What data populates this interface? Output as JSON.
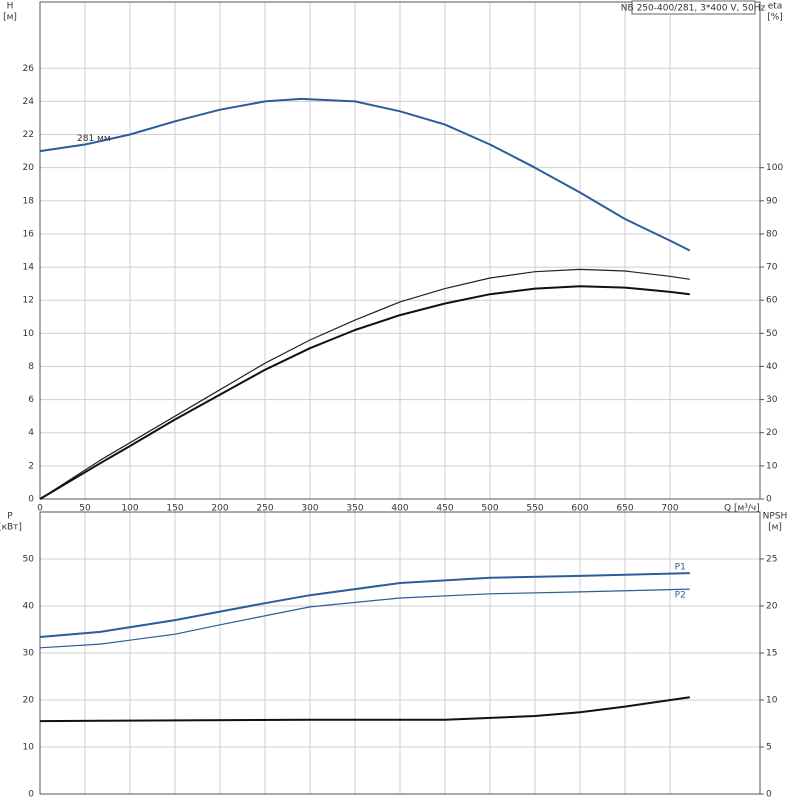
{
  "chart_data": [
    {
      "type": "line",
      "title": "NB 250-400/281, 3*400 V, 50Hz",
      "ylabel": [
        "H",
        "[м]"
      ],
      "y2label": [
        "eta",
        "[%]"
      ],
      "xlabel": "Q [м³/ч]",
      "annotation": "281 мм",
      "xlim": [
        0,
        800
      ],
      "xticks": [
        0,
        50,
        100,
        150,
        200,
        250,
        300,
        350,
        400,
        450,
        500,
        550,
        600,
        650,
        700
      ],
      "xticklabels": true,
      "ylim": [
        0,
        30
      ],
      "yticks": [
        0,
        2,
        4,
        6,
        8,
        10,
        12,
        14,
        16,
        18,
        20,
        22,
        24,
        26
      ],
      "y2lim": [
        0,
        150
      ],
      "y2ticks": [
        0,
        10,
        20,
        30,
        40,
        50,
        60,
        70,
        80,
        90,
        100
      ],
      "grid": true,
      "series": [
        {
          "color": "#2a5d9a",
          "linewidth": 2,
          "axis": "y",
          "x": [
            0,
            50,
            67,
            100,
            150,
            200,
            250,
            290,
            350,
            400,
            450,
            500,
            550,
            600,
            650,
            700,
            722
          ],
          "values": [
            21,
            21.4,
            21.6,
            22.0,
            22.8,
            23.5,
            24.0,
            24.15,
            24.0,
            23.4,
            22.6,
            21.4,
            20.0,
            18.5,
            16.9,
            15.6,
            15.0
          ]
        },
        {
          "color": "#222222",
          "linewidth": 1.2,
          "axis": "y2",
          "x": [
            0,
            67,
            100,
            150,
            200,
            250,
            300,
            350,
            400,
            450,
            500,
            550,
            600,
            650,
            700,
            722
          ],
          "values": [
            0,
            11.7,
            17,
            25,
            33,
            41,
            48,
            54,
            59.5,
            63.5,
            66.7,
            68.6,
            69.3,
            68.8,
            67.2,
            66.3
          ]
        },
        {
          "color": "#111111",
          "linewidth": 2,
          "axis": "y2",
          "x": [
            0,
            67,
            100,
            150,
            200,
            250,
            300,
            350,
            400,
            450,
            500,
            550,
            600,
            650,
            700,
            722
          ],
          "values": [
            0,
            10.8,
            16,
            24,
            31.5,
            39,
            45.5,
            51,
            55.5,
            59,
            61.8,
            63.5,
            64.2,
            63.8,
            62.5,
            61.8
          ]
        }
      ]
    },
    {
      "type": "line",
      "ylabel": [
        "P",
        "[кВт]"
      ],
      "y2label": [
        "NPSH",
        "[м]"
      ],
      "xlim": [
        0,
        800
      ],
      "xticks": [
        0,
        50,
        100,
        150,
        200,
        250,
        300,
        350,
        400,
        450,
        500,
        550,
        600,
        650,
        700
      ],
      "xticklabels": false,
      "ylim": [
        0,
        60
      ],
      "yticks": [
        0,
        10,
        20,
        30,
        40,
        50
      ],
      "y2lim": [
        0,
        30
      ],
      "y2ticks": [
        0,
        5,
        10,
        15,
        20,
        25
      ],
      "grid": true,
      "series": [
        {
          "name": "P1",
          "color": "#2a5d9a",
          "linewidth": 2,
          "axis": "y",
          "x": [
            0,
            67,
            150,
            200,
            250,
            300,
            400,
            500,
            600,
            722
          ],
          "values": [
            33.4,
            34.5,
            37,
            38.8,
            40.6,
            42.3,
            44.9,
            46,
            46.4,
            47
          ]
        },
        {
          "name": "P2",
          "color": "#2a5d9a",
          "linewidth": 1.2,
          "axis": "y",
          "x": [
            0,
            67,
            150,
            200,
            300,
            400,
            500,
            600,
            722
          ],
          "values": [
            31.1,
            31.9,
            34,
            36,
            39.8,
            41.7,
            42.6,
            43,
            43.6
          ]
        },
        {
          "color": "#111111",
          "linewidth": 2,
          "axis": "y2",
          "x": [
            0,
            67,
            300,
            450,
            550,
            600,
            650,
            722
          ],
          "values": [
            7.75,
            7.8,
            7.9,
            7.9,
            8.3,
            8.7,
            9.3,
            10.3
          ]
        }
      ]
    }
  ]
}
